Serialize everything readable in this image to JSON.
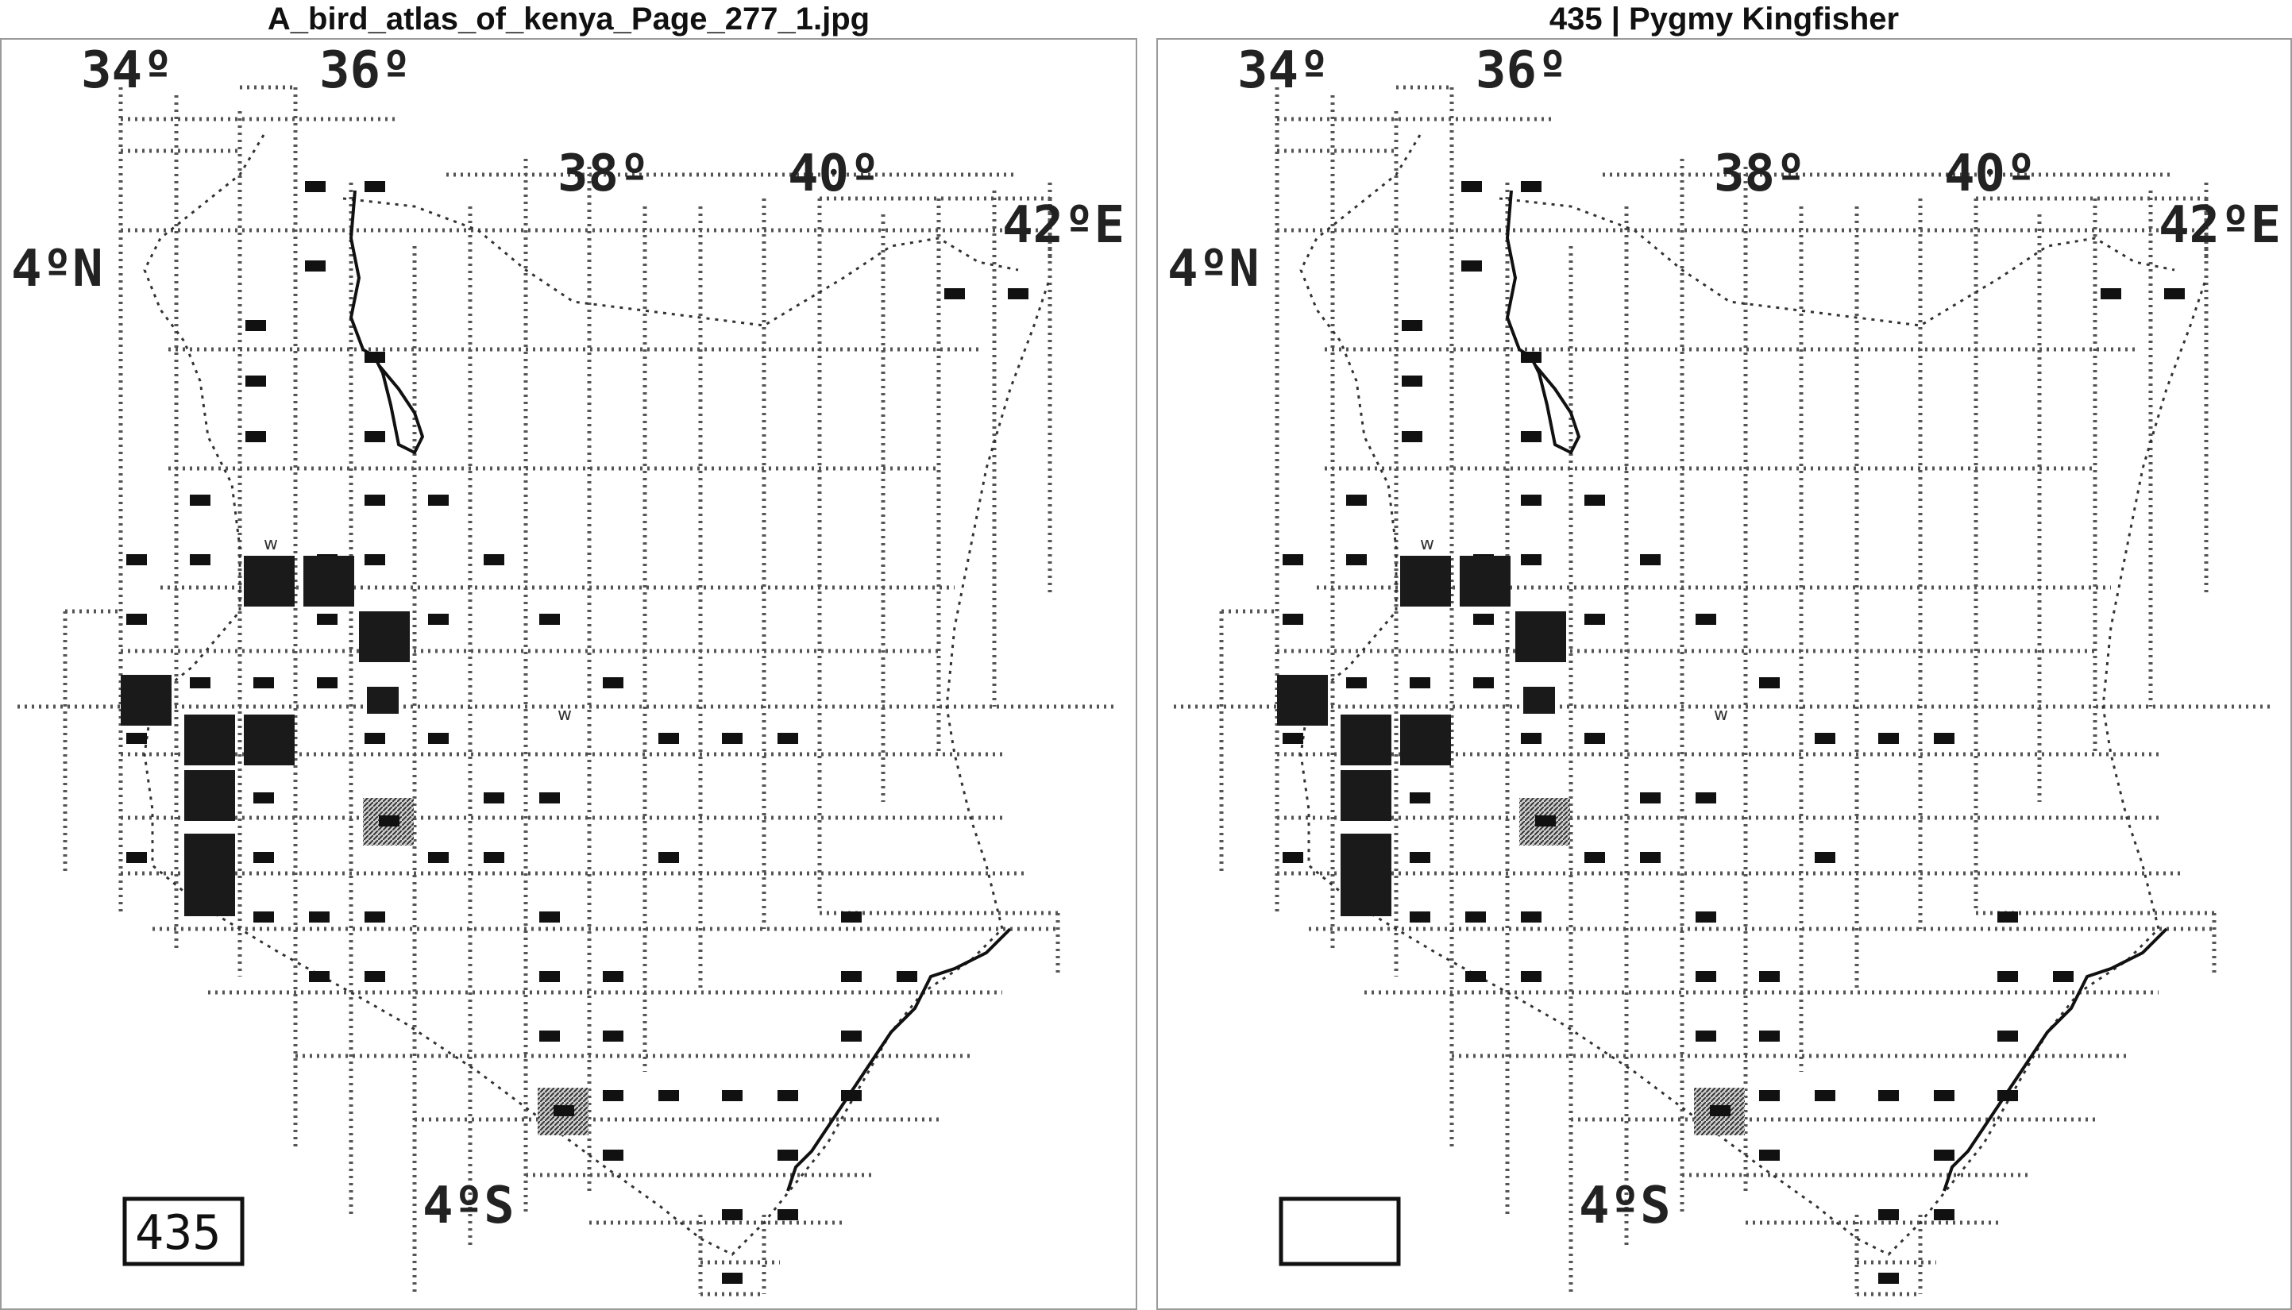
{
  "panels": [
    {
      "title": "A_bird_atlas_of_kenya_Page_277_1.jpg",
      "species_box_text": "435"
    },
    {
      "title": "435 | Pygmy Kingfisher",
      "species_box_text": ""
    }
  ],
  "map": {
    "longitude_labels": [
      "34º",
      "36º",
      "38º",
      "40º",
      "42ºE"
    ],
    "latitude_labels": [
      "4ºN",
      "4ºS"
    ],
    "marker_w": "w",
    "colors": {
      "ink": "#111111",
      "grid": "#555555",
      "hatched": "#777777",
      "frame": "#9a9a9a"
    },
    "records": {
      "square_symbol_meaning": "breeding / large square",
      "small": [
        [
          5,
          2
        ],
        [
          6,
          2
        ],
        [
          6,
          4
        ],
        [
          5,
          5
        ],
        [
          4,
          5
        ],
        [
          4,
          6
        ],
        [
          3,
          8
        ],
        [
          5,
          8
        ],
        [
          6,
          8
        ],
        [
          3,
          9
        ],
        [
          4,
          9
        ],
        [
          5,
          9
        ],
        [
          8,
          9
        ],
        [
          2,
          10
        ],
        [
          3,
          10
        ],
        [
          5,
          10
        ],
        [
          6,
          10
        ],
        [
          9,
          10
        ],
        [
          4,
          11
        ],
        [
          5,
          11
        ],
        [
          6,
          11
        ],
        [
          10,
          11
        ],
        [
          2,
          12
        ],
        [
          4,
          12
        ],
        [
          6,
          12
        ],
        [
          7,
          12
        ],
        [
          11,
          12
        ],
        [
          12,
          12
        ],
        [
          13,
          12
        ],
        [
          4,
          13
        ],
        [
          8,
          13
        ],
        [
          9,
          13
        ],
        [
          2,
          14
        ],
        [
          4,
          14
        ],
        [
          7,
          14
        ],
        [
          8,
          14
        ],
        [
          11,
          14
        ],
        [
          4,
          15
        ],
        [
          5,
          15
        ],
        [
          6,
          15
        ],
        [
          9,
          15
        ],
        [
          14,
          15
        ],
        [
          5,
          16
        ],
        [
          6,
          16
        ],
        [
          9,
          16
        ],
        [
          10,
          16
        ],
        [
          14,
          16
        ],
        [
          15,
          16
        ],
        [
          9,
          17
        ],
        [
          10,
          17
        ],
        [
          14,
          17
        ],
        [
          10,
          18
        ],
        [
          11,
          18
        ],
        [
          12,
          18
        ],
        [
          13,
          18
        ],
        [
          14,
          18
        ],
        [
          10,
          19
        ],
        [
          13,
          19
        ],
        [
          12,
          20
        ],
        [
          13,
          20
        ],
        [
          12,
          21
        ]
      ],
      "large": [
        [
          4,
          9
        ],
        [
          5,
          9
        ],
        [
          6,
          10
        ],
        [
          2,
          11
        ],
        [
          3,
          12
        ],
        [
          4,
          12
        ],
        [
          3,
          13
        ],
        [
          3,
          14
        ]
      ],
      "medium": [
        [
          6,
          11
        ]
      ],
      "hatched": [
        [
          6,
          13
        ],
        [
          9,
          18
        ]
      ],
      "w_cells": [
        [
          4,
          8
        ],
        [
          9,
          11
        ]
      ],
      "far_east_small": [
        [
          16,
          4
        ],
        [
          17,
          4
        ]
      ]
    }
  }
}
